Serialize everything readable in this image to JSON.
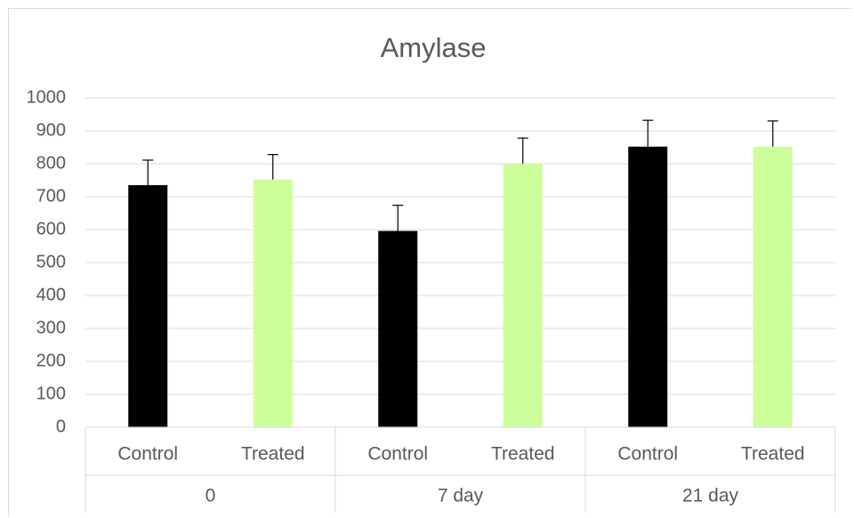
{
  "chart_data": {
    "type": "bar",
    "title": "Amylase",
    "xlabel": "",
    "ylabel": "",
    "ylim": [
      0,
      1000
    ],
    "yticks": [
      0,
      100,
      200,
      300,
      400,
      500,
      600,
      700,
      800,
      900,
      1000
    ],
    "grid": true,
    "legend": "none",
    "groups": [
      "0",
      "7 day",
      "21 day"
    ],
    "categories": [
      "Control",
      "Treated",
      "Control",
      "Treated",
      "Control",
      "Treated"
    ],
    "values": [
      735,
      752,
      596,
      800,
      852,
      852
    ],
    "errors": [
      76,
      76,
      78,
      78,
      80,
      78
    ],
    "colors": [
      "#000000",
      "#ccff99",
      "#000000",
      "#ccff99",
      "#000000",
      "#ccff99"
    ]
  }
}
